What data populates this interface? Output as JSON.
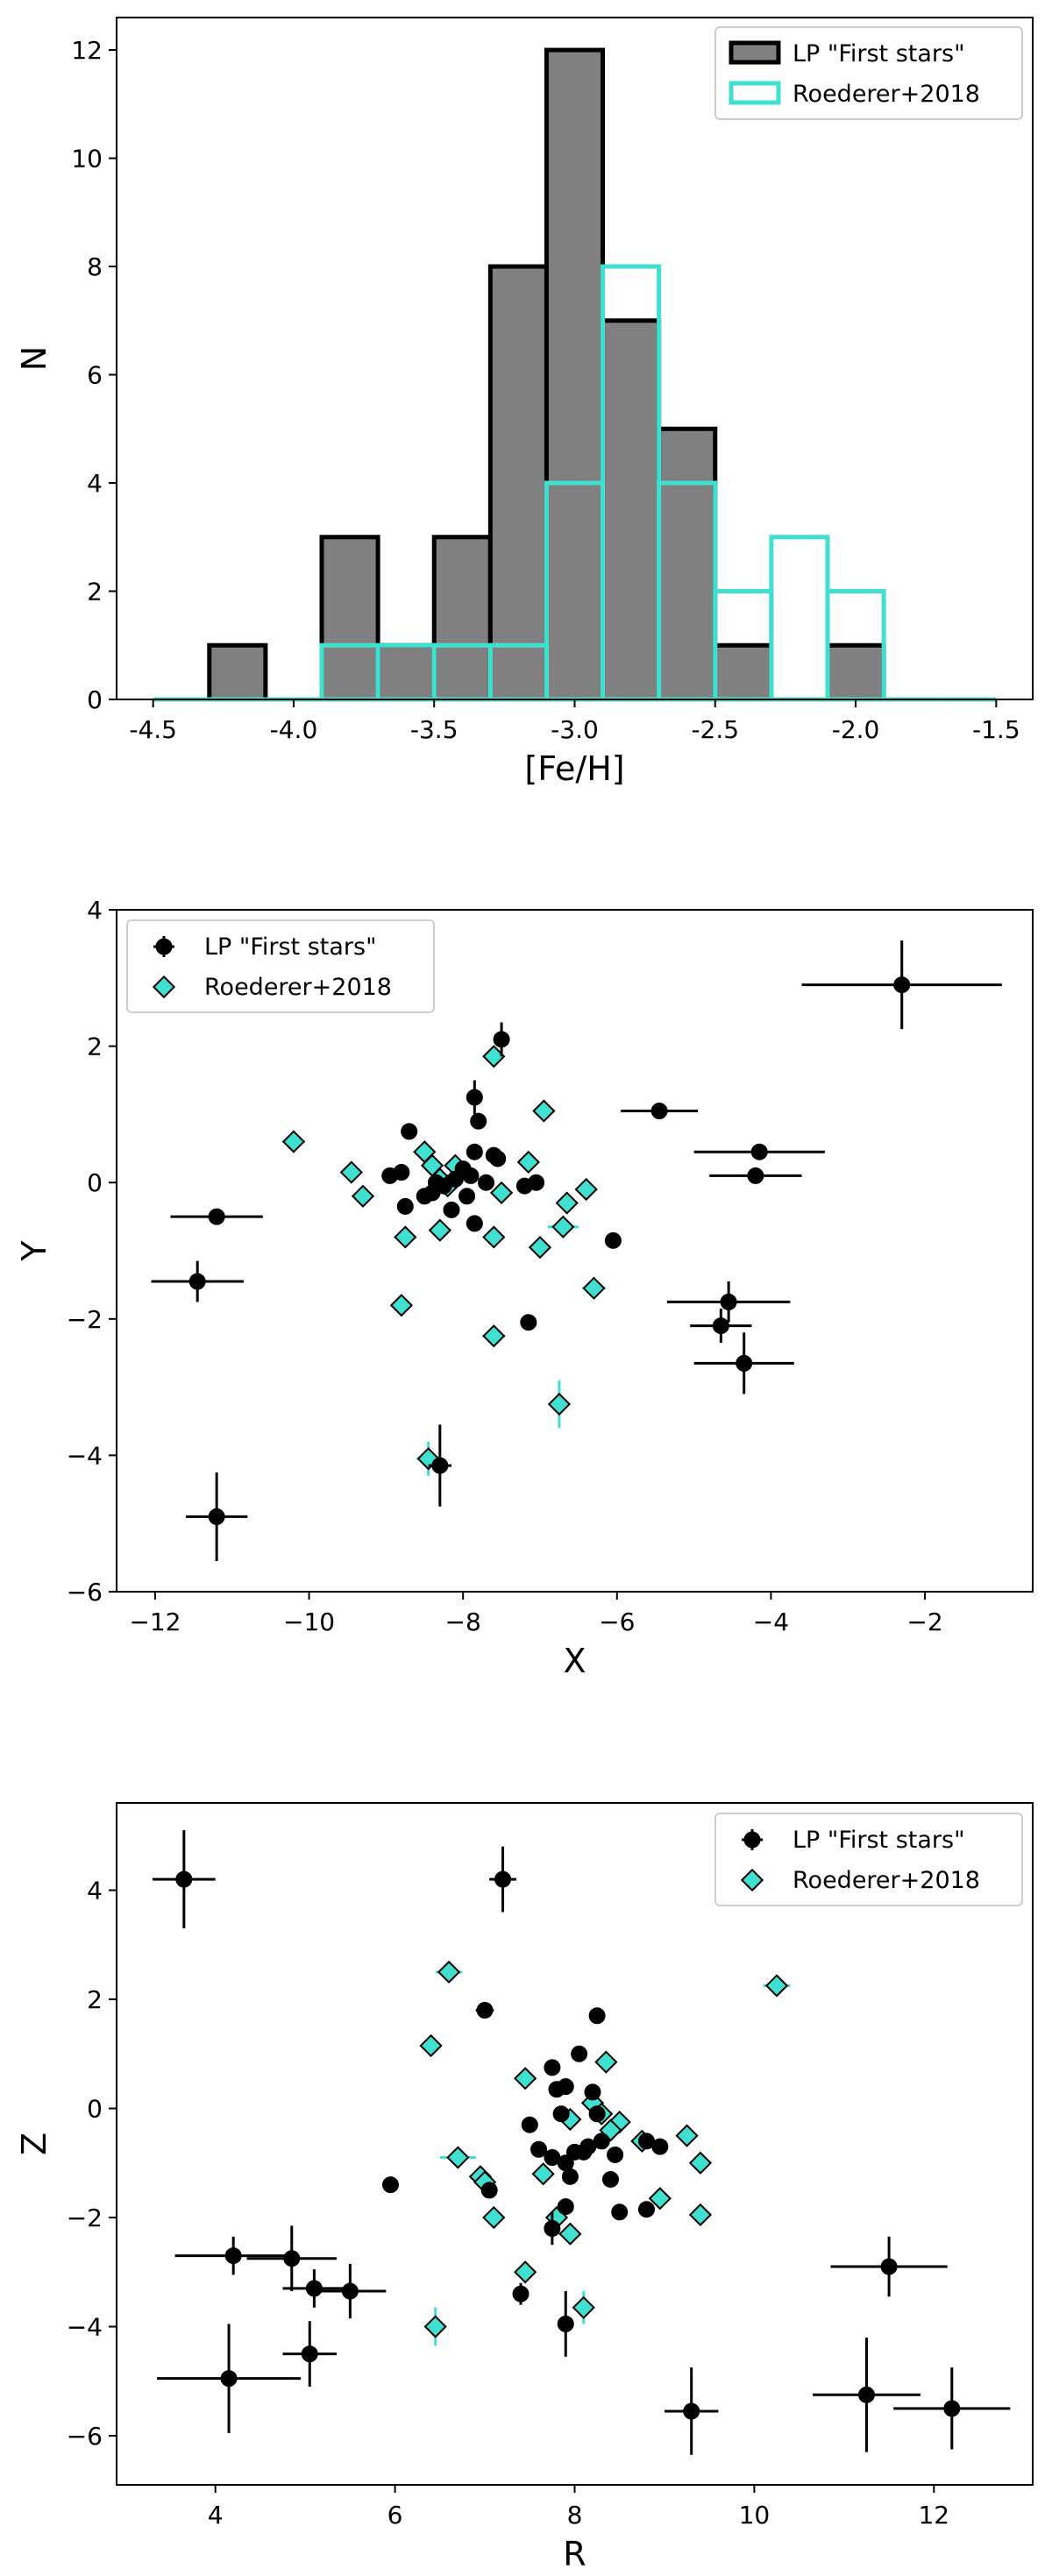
{
  "colors": {
    "gray_fill": "#808080",
    "black": "#000000",
    "cyan": "#40E0D0"
  },
  "chart_data": [
    {
      "type": "histogram",
      "xlabel": "[Fe/H]",
      "ylabel": "N",
      "xlim": [
        -4.63,
        -1.37
      ],
      "ylim": [
        0,
        12.6
      ],
      "xticks": [
        "-4.5",
        "-4.0",
        "-3.5",
        "-3.0",
        "-2.5",
        "-2.0",
        "-1.5"
      ],
      "xtick_values": [
        -4.5,
        -4.0,
        -3.5,
        -3.0,
        -2.5,
        -2.0,
        -1.5
      ],
      "yticks": [
        "0",
        "2",
        "4",
        "6",
        "8",
        "10",
        "12"
      ],
      "ytick_values": [
        0,
        2,
        4,
        6,
        8,
        10,
        12
      ],
      "legend_position": "upper right",
      "bin_edges": [
        -4.5,
        -4.3,
        -4.1,
        -3.9,
        -3.7,
        -3.5,
        -3.3,
        -3.1,
        -2.9,
        -2.7,
        -2.5,
        -2.3,
        -2.1,
        -1.9,
        -1.7,
        -1.5
      ],
      "series": [
        {
          "name": "LP \"First stars\"",
          "style": "filled-gray-black-edge",
          "counts": [
            0,
            1,
            0,
            3,
            1,
            3,
            8,
            12,
            7,
            5,
            1,
            0,
            1,
            0,
            0
          ]
        },
        {
          "name": "Roederer+2018",
          "style": "step-cyan",
          "counts": [
            0,
            0,
            0,
            1,
            1,
            1,
            1,
            4,
            8,
            4,
            2,
            3,
            2,
            0,
            0
          ]
        }
      ]
    },
    {
      "type": "scatter",
      "xlabel": "X",
      "ylabel": "Y",
      "xlim": [
        -12.5,
        -0.6
      ],
      "ylim": [
        -6,
        4
      ],
      "xticks": [
        "−12",
        "−10",
        "−8",
        "−6",
        "−4",
        "−2"
      ],
      "xtick_values": [
        -12,
        -10,
        -8,
        -6,
        -4,
        -2
      ],
      "yticks": [
        "−6",
        "−4",
        "−2",
        "0",
        "2",
        "4"
      ],
      "ytick_values": [
        -6,
        -4,
        -2,
        0,
        2,
        4
      ],
      "legend_position": "upper left",
      "series": [
        {
          "name": "LP \"First stars\"",
          "marker": "circle-black",
          "points": [
            {
              "x": -2.3,
              "y": 2.9,
              "xerr": 1.3,
              "yerr": 0.65
            },
            {
              "x": -7.5,
              "y": 2.1,
              "xerr": 0.08,
              "yerr": 0.25
            },
            {
              "x": -7.85,
              "y": 1.25,
              "xerr": 0.1,
              "yerr": 0.25
            },
            {
              "x": -5.45,
              "y": 1.05,
              "xerr": 0.5,
              "yerr": 0.12
            },
            {
              "x": -7.8,
              "y": 0.9,
              "yerr": 0.12
            },
            {
              "x": -8.7,
              "y": 0.75
            },
            {
              "x": -4.15,
              "y": 0.45,
              "xerr": 0.85,
              "yerr": 0.1
            },
            {
              "x": -4.2,
              "y": 0.1,
              "xerr": 0.6,
              "yerr": 0.1
            },
            {
              "x": -11.2,
              "y": -0.5,
              "xerr": 0.6,
              "yerr": 0.08
            },
            {
              "x": -11.45,
              "y": -1.45,
              "xerr": 0.6,
              "yerr": 0.3
            },
            {
              "x": -11.2,
              "y": -4.9,
              "xerr": 0.4,
              "yerr": 0.65
            },
            {
              "x": -8.3,
              "y": -4.15,
              "xerr": 0.15,
              "yerr": 0.6
            },
            {
              "x": -4.55,
              "y": -1.75,
              "xerr": 0.8,
              "yerr": 0.3
            },
            {
              "x": -4.65,
              "y": -2.1,
              "xerr": 0.4,
              "yerr": 0.25
            },
            {
              "x": -4.35,
              "y": -2.65,
              "xerr": 0.65,
              "yerr": 0.45
            },
            {
              "x": -7.15,
              "y": -2.05,
              "yerr": 0.1
            },
            {
              "x": -6.05,
              "y": -0.85
            },
            {
              "x": -7.85,
              "y": -0.6
            },
            {
              "x": -8.75,
              "y": -0.35
            },
            {
              "x": -8.15,
              "y": -0.4
            },
            {
              "x": -8.95,
              "y": 0.1
            },
            {
              "x": -8.8,
              "y": 0.15
            },
            {
              "x": -8.5,
              "y": -0.2
            },
            {
              "x": -8.4,
              "y": -0.15
            },
            {
              "x": -8.25,
              "y": -0.05
            },
            {
              "x": -8.1,
              "y": 0.05
            },
            {
              "x": -8.0,
              "y": 0.2
            },
            {
              "x": -7.9,
              "y": 0.1
            },
            {
              "x": -7.85,
              "y": 0.45
            },
            {
              "x": -7.7,
              "y": 0.0
            },
            {
              "x": -7.6,
              "y": 0.4
            },
            {
              "x": -7.55,
              "y": 0.35
            },
            {
              "x": -7.2,
              "y": -0.05
            },
            {
              "x": -7.05,
              "y": 0.0
            },
            {
              "x": -8.35,
              "y": 0.0
            },
            {
              "x": -7.95,
              "y": -0.2
            }
          ]
        },
        {
          "name": "Roederer+2018",
          "marker": "diamond-cyan",
          "points": [
            {
              "x": -7.6,
              "y": 1.85,
              "yerr": 0.15
            },
            {
              "x": -10.2,
              "y": 0.6,
              "xerr": 0.15
            },
            {
              "x": -6.95,
              "y": 1.05
            },
            {
              "x": -9.45,
              "y": 0.15
            },
            {
              "x": -9.3,
              "y": -0.2
            },
            {
              "x": -8.5,
              "y": 0.45
            },
            {
              "x": -8.4,
              "y": 0.25
            },
            {
              "x": -8.1,
              "y": 0.25
            },
            {
              "x": -8.3,
              "y": 0.05
            },
            {
              "x": -8.2,
              "y": -0.05
            },
            {
              "x": -7.15,
              "y": 0.3
            },
            {
              "x": -7.5,
              "y": -0.15
            },
            {
              "x": -6.4,
              "y": -0.1
            },
            {
              "x": -6.65,
              "y": -0.3
            },
            {
              "x": -6.7,
              "y": -0.65,
              "xerr": 0.2
            },
            {
              "x": -8.75,
              "y": -0.8
            },
            {
              "x": -8.3,
              "y": -0.7
            },
            {
              "x": -7.6,
              "y": -0.8
            },
            {
              "x": -7.0,
              "y": -0.95
            },
            {
              "x": -6.3,
              "y": -1.55,
              "xerr": 0.15
            },
            {
              "x": -8.8,
              "y": -1.8
            },
            {
              "x": -7.6,
              "y": -2.25,
              "xerr": 0.15
            },
            {
              "x": -6.75,
              "y": -3.25,
              "yerr": 0.35
            },
            {
              "x": -8.45,
              "y": -4.05,
              "xerr": 0.15,
              "yerr": 0.25
            }
          ]
        }
      ]
    },
    {
      "type": "scatter",
      "xlabel": "R",
      "ylabel": "Z",
      "xlim": [
        2.9,
        13.1
      ],
      "ylim": [
        -6.9,
        5.6
      ],
      "xticks": [
        "4",
        "6",
        "8",
        "10",
        "12"
      ],
      "xtick_values": [
        4,
        6,
        8,
        10,
        12
      ],
      "yticks": [
        "−6",
        "−4",
        "−2",
        "0",
        "2",
        "4"
      ],
      "ytick_values": [
        -6,
        -4,
        -2,
        0,
        2,
        4
      ],
      "legend_position": "upper right",
      "series": [
        {
          "name": "LP \"First stars\"",
          "marker": "circle-black",
          "points": [
            {
              "x": 3.65,
              "y": 4.2,
              "xerr": 0.35,
              "yerr": 0.9
            },
            {
              "x": 7.2,
              "y": 4.2,
              "xerr": 0.15,
              "yerr": 0.6
            },
            {
              "x": 7.0,
              "y": 1.8,
              "xerr": 0.1,
              "yerr": 0.1
            },
            {
              "x": 8.25,
              "y": 1.7
            },
            {
              "x": 8.05,
              "y": 1.0
            },
            {
              "x": 7.75,
              "y": 0.75
            },
            {
              "x": 7.9,
              "y": 0.4
            },
            {
              "x": 7.8,
              "y": 0.35
            },
            {
              "x": 8.2,
              "y": 0.3
            },
            {
              "x": 5.95,
              "y": -1.4
            },
            {
              "x": 7.05,
              "y": -1.5
            },
            {
              "x": 8.5,
              "y": -1.9
            },
            {
              "x": 8.8,
              "y": -1.85
            },
            {
              "x": 7.9,
              "y": -1.8
            },
            {
              "x": 7.75,
              "y": -2.2,
              "yerr": 0.3
            },
            {
              "x": 7.4,
              "y": -3.4,
              "yerr": 0.2
            },
            {
              "x": 7.9,
              "y": -3.95,
              "yerr": 0.6
            },
            {
              "x": 4.2,
              "y": -2.7,
              "xerr": 0.65,
              "yerr": 0.35
            },
            {
              "x": 4.85,
              "y": -2.75,
              "xerr": 0.5,
              "yerr": 0.6
            },
            {
              "x": 5.1,
              "y": -3.3,
              "xerr": 0.35,
              "yerr": 0.35
            },
            {
              "x": 5.5,
              "y": -3.35,
              "xerr": 0.4,
              "yerr": 0.5
            },
            {
              "x": 5.05,
              "y": -4.5,
              "xerr": 0.3,
              "yerr": 0.6
            },
            {
              "x": 4.15,
              "y": -4.95,
              "xerr": 0.8,
              "yerr": 1.0
            },
            {
              "x": 9.3,
              "y": -5.55,
              "xerr": 0.3,
              "yerr": 0.8
            },
            {
              "x": 11.25,
              "y": -5.25,
              "xerr": 0.6,
              "yerr": 1.05
            },
            {
              "x": 12.2,
              "y": -5.5,
              "xerr": 0.65,
              "yerr": 0.75
            },
            {
              "x": 11.5,
              "y": -2.9,
              "xerr": 0.65,
              "yerr": 0.55
            },
            {
              "x": 7.5,
              "y": -0.3
            },
            {
              "x": 7.6,
              "y": -0.75
            },
            {
              "x": 7.75,
              "y": -0.9
            },
            {
              "x": 7.9,
              "y": -1.0
            },
            {
              "x": 8.0,
              "y": -0.8
            },
            {
              "x": 8.1,
              "y": -0.8
            },
            {
              "x": 8.15,
              "y": -0.7
            },
            {
              "x": 8.3,
              "y": -0.6
            },
            {
              "x": 8.4,
              "y": -1.3
            },
            {
              "x": 8.45,
              "y": -0.85
            },
            {
              "x": 8.8,
              "y": -0.6
            },
            {
              "x": 8.95,
              "y": -0.7
            },
            {
              "x": 8.25,
              "y": -0.1
            },
            {
              "x": 7.85,
              "y": -0.1
            },
            {
              "x": 7.95,
              "y": -1.25
            }
          ]
        },
        {
          "name": "Roederer+2018",
          "marker": "diamond-cyan",
          "points": [
            {
              "x": 6.6,
              "y": 2.5,
              "xerr": 0.15,
              "yerr": 0.15
            },
            {
              "x": 10.25,
              "y": 2.25,
              "xerr": 0.15
            },
            {
              "x": 6.4,
              "y": 1.15,
              "xerr": 0.1
            },
            {
              "x": 8.35,
              "y": 0.85
            },
            {
              "x": 7.45,
              "y": 0.55
            },
            {
              "x": 8.2,
              "y": 0.1
            },
            {
              "x": 8.3,
              "y": -0.1
            },
            {
              "x": 8.5,
              "y": -0.25
            },
            {
              "x": 8.4,
              "y": -0.4
            },
            {
              "x": 7.95,
              "y": -0.2
            },
            {
              "x": 9.25,
              "y": -0.5
            },
            {
              "x": 8.75,
              "y": -0.6
            },
            {
              "x": 9.4,
              "y": -1.0
            },
            {
              "x": 6.7,
              "y": -0.9,
              "xerr": 0.2
            },
            {
              "x": 7.65,
              "y": -1.2
            },
            {
              "x": 6.95,
              "y": -1.25,
              "xerr": 0.1
            },
            {
              "x": 7.0,
              "y": -1.35
            },
            {
              "x": 8.95,
              "y": -1.65
            },
            {
              "x": 7.1,
              "y": -2.0
            },
            {
              "x": 7.8,
              "y": -2.0,
              "xerr": 0.1
            },
            {
              "x": 9.4,
              "y": -1.95
            },
            {
              "x": 7.95,
              "y": -2.3
            },
            {
              "x": 7.45,
              "y": -3.0,
              "yerr": 0.2
            },
            {
              "x": 8.1,
              "y": -3.65,
              "yerr": 0.3
            },
            {
              "x": 6.45,
              "y": -4.0,
              "yerr": 0.35
            }
          ]
        }
      ]
    }
  ]
}
